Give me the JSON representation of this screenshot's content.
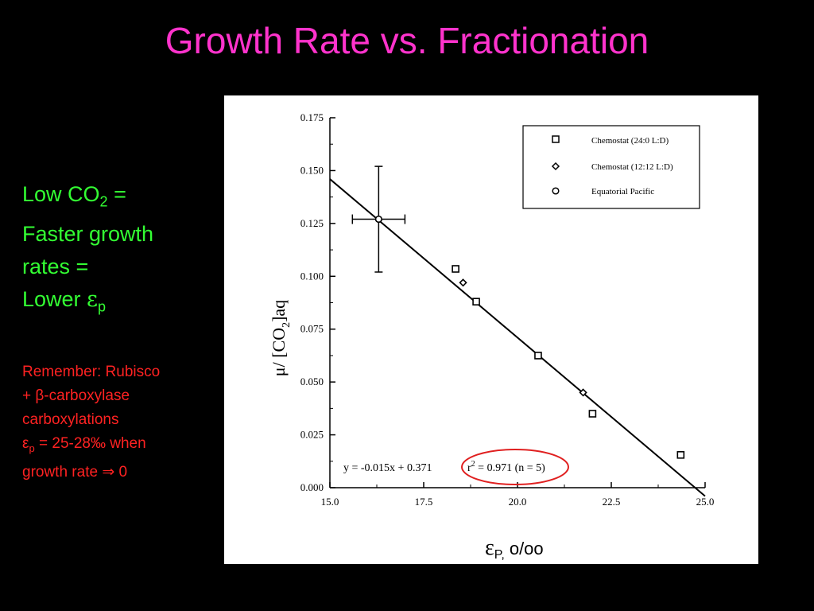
{
  "slide": {
    "title": "Growth Rate vs. Fractionation",
    "point": {
      "line1_pre": "Low CO",
      "line1_sub": "2",
      "line1_post": " =",
      "line2": "Faster growth",
      "line3": "rates =",
      "line4_pre": "Lower ",
      "line4_symbol": "ε",
      "line4_sub": "p"
    },
    "note": {
      "line1": "Remember: Rubisco",
      "line2": "+ β-carboxylase",
      "line3": "carboxylations",
      "line4_symbol": "ε",
      "line4_sub": "p",
      "line4_post": " = 25-28‰ when",
      "line5_pre": "growth rate ",
      "line5_arrow": "⇒",
      "line5_post": " 0"
    }
  },
  "colors": {
    "background": "#000000",
    "title": "#ff33cc",
    "point_text": "#33ff33",
    "note_text": "#ff2222",
    "highlight_ellipse": "#e02020"
  },
  "chart_data": {
    "type": "scatter",
    "xlabel": "ε",
    "xlabel_sub": "P,",
    "xlabel_unit": "o/oo",
    "ylabel": "μ/ [CO",
    "ylabel_sub": "2",
    "ylabel_post": "]aq",
    "xlim": [
      15.0,
      25.0
    ],
    "ylim": [
      0.0,
      0.175
    ],
    "xticks": [
      "15.0",
      "17.5",
      "20.0",
      "22.5",
      "25.0"
    ],
    "yticks": [
      "0.000",
      "0.025",
      "0.050",
      "0.075",
      "0.100",
      "0.125",
      "0.150",
      "0.175"
    ],
    "legend_position": "top-right",
    "series": [
      {
        "name": "Chemostat (24:0 L:D)",
        "marker": "square",
        "points": [
          {
            "x": 18.35,
            "y": 0.1035
          },
          {
            "x": 18.9,
            "y": 0.088
          },
          {
            "x": 20.55,
            "y": 0.0625
          },
          {
            "x": 22.0,
            "y": 0.035
          },
          {
            "x": 24.35,
            "y": 0.0155
          }
        ]
      },
      {
        "name": "Chemostat (12:12 L:D)",
        "marker": "diamond",
        "points": [
          {
            "x": 18.55,
            "y": 0.097
          },
          {
            "x": 21.75,
            "y": 0.045
          }
        ]
      },
      {
        "name": "Equatorial Pacific",
        "marker": "circle",
        "points": [
          {
            "x": 16.3,
            "y": 0.127,
            "xerr": [
              15.6,
              17.0
            ],
            "yerr": [
              0.102,
              0.152
            ]
          }
        ]
      }
    ],
    "fit_line": {
      "slope": -0.015,
      "intercept": 0.371,
      "x_range": [
        15.0,
        25.0
      ]
    },
    "annotation": {
      "equation": "y =  -0.015x + 0.371",
      "r2_pre": "r",
      "r2_sup": "2",
      "r2_post": " = 0.971 (n = 5)"
    }
  }
}
